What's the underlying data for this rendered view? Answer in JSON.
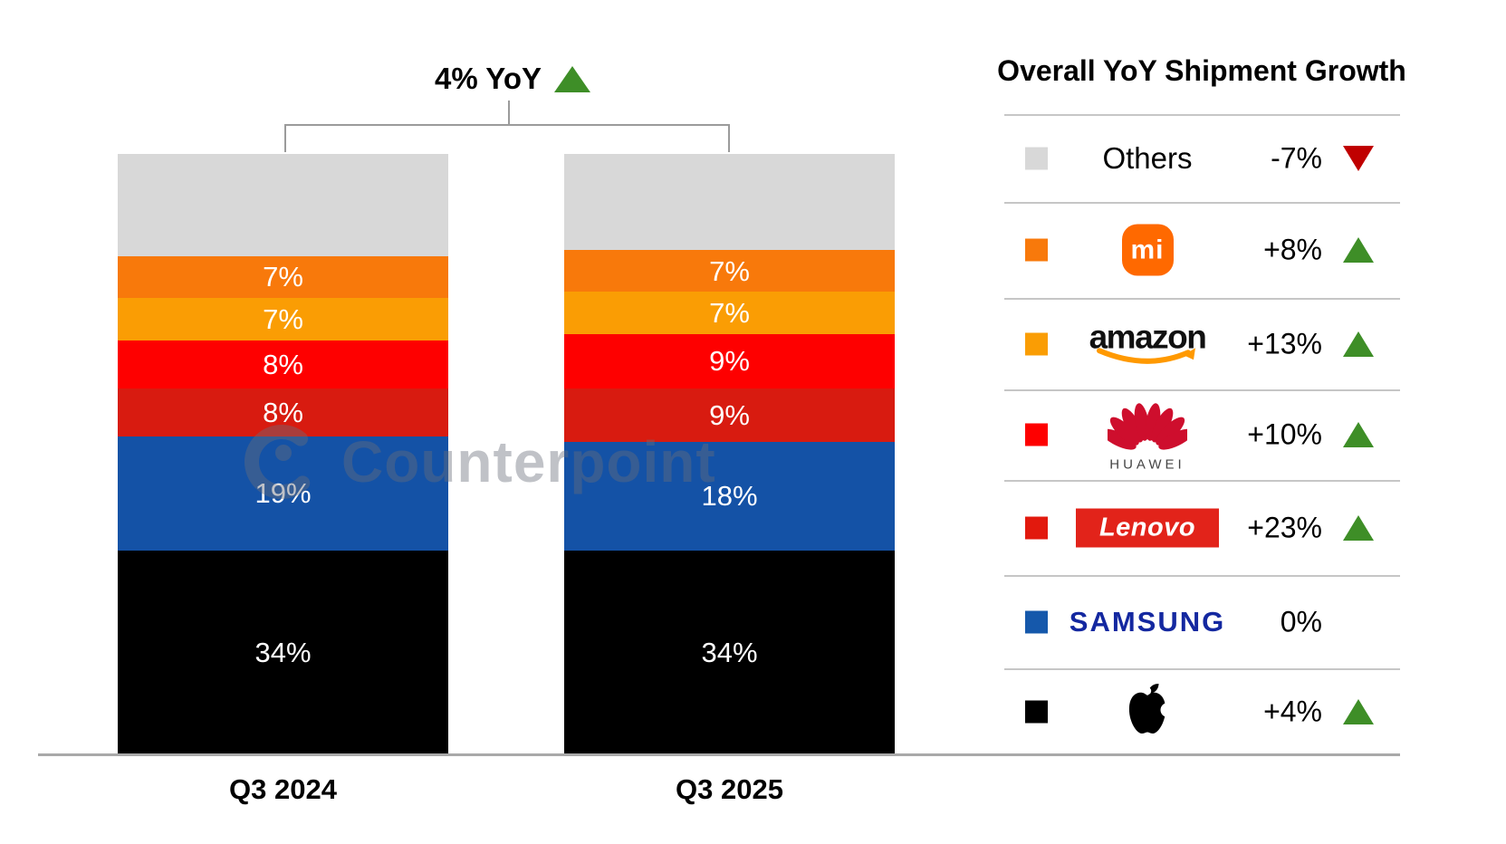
{
  "title": {
    "label": "4% YoY",
    "direction": "up"
  },
  "watermark": {
    "text": "Counterpoint"
  },
  "colors": {
    "up_triangle": "#3E8E27",
    "down_triangle": "#C00000",
    "baseline": "#A9A9A9"
  },
  "chart_data": {
    "type": "bar",
    "stacked": true,
    "unit": "%",
    "title": "4% YoY",
    "categories": [
      "Q3 2024",
      "Q3 2025"
    ],
    "ylim": [
      0,
      100
    ],
    "series": [
      {
        "name": "Apple",
        "color": "#000000",
        "values": [
          34,
          34
        ],
        "show_label": true
      },
      {
        "name": "Samsung",
        "color": "#1452A6",
        "values": [
          19,
          18
        ],
        "show_label": true
      },
      {
        "name": "Lenovo",
        "color": "#D81B10",
        "values": [
          8,
          9
        ],
        "show_label": true
      },
      {
        "name": "Huawei",
        "color": "#FE0000",
        "values": [
          8,
          9
        ],
        "show_label": true
      },
      {
        "name": "Amazon",
        "color": "#FA9D04",
        "values": [
          7,
          7
        ],
        "show_label": true
      },
      {
        "name": "Xiaomi",
        "color": "#F8790B",
        "values": [
          7,
          7
        ],
        "show_label": true
      },
      {
        "name": "Others",
        "color": "#D8D8D8",
        "values": [
          17,
          16
        ],
        "show_label": false
      }
    ]
  },
  "legend": {
    "header": "Overall YoY Shipment Growth",
    "rows": [
      {
        "brand": "Others",
        "logo": "others",
        "logo_text": "Others",
        "growth": "-7%",
        "direction": "down",
        "swatch": "#D8D8D8"
      },
      {
        "brand": "Xiaomi",
        "logo": "xiaomi",
        "logo_text": "mi",
        "growth": "+8%",
        "direction": "up",
        "swatch": "#F8790B"
      },
      {
        "brand": "Amazon",
        "logo": "amazon",
        "logo_text": "amazon",
        "growth": "+13%",
        "direction": "up",
        "swatch": "#FA9D04"
      },
      {
        "brand": "Huawei",
        "logo": "huawei",
        "logo_text": "HUAWEI",
        "growth": "+10%",
        "direction": "up",
        "swatch": "#FE0000"
      },
      {
        "brand": "Lenovo",
        "logo": "lenovo",
        "logo_text": "Lenovo",
        "growth": "+23%",
        "direction": "up",
        "swatch": "#E2190D"
      },
      {
        "brand": "Samsung",
        "logo": "samsung",
        "logo_text": "SAMSUNG",
        "growth": "0%",
        "direction": "none",
        "swatch": "#1558AB"
      },
      {
        "brand": "Apple",
        "logo": "apple",
        "logo_text": "",
        "growth": "+4%",
        "direction": "up",
        "swatch": "#000000"
      }
    ]
  }
}
